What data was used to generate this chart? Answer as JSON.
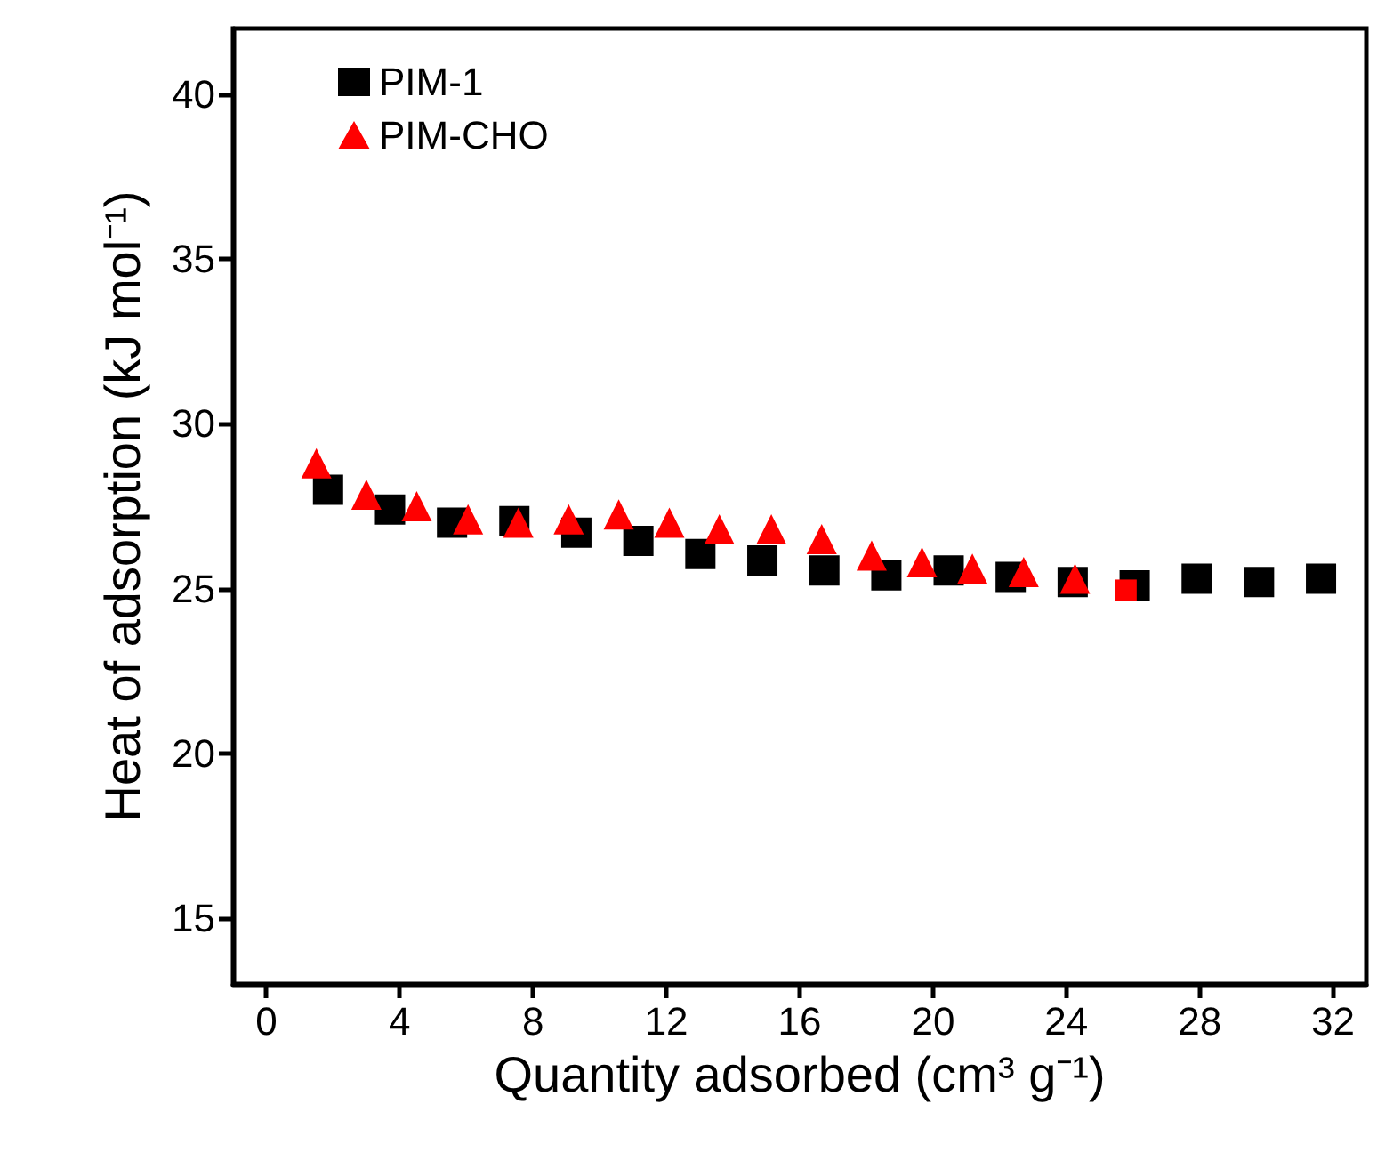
{
  "chart_data": {
    "type": "scatter",
    "xlabel": "Quantity adsorbed (cm³ g⁻¹)",
    "ylabel": "Heat of adsorption (kJ mol⁻¹)",
    "xlim": [
      -1,
      33
    ],
    "xticks": [
      0,
      4,
      8,
      12,
      16,
      20,
      24,
      28,
      32
    ],
    "ylim": [
      13,
      42
    ],
    "yticks": [
      15,
      20,
      25,
      30,
      35,
      40
    ],
    "grid": false,
    "legend": "top left",
    "series": [
      {
        "name": "PIM-1",
        "color": "#000000",
        "marker": "square",
        "x": [
          1.85,
          3.71,
          5.57,
          7.44,
          9.3,
          11.16,
          13.02,
          14.88,
          16.74,
          18.6,
          20.47,
          22.33,
          24.19,
          26.05,
          27.91,
          29.78,
          31.64
        ],
        "values": [
          28.0,
          27.4,
          27.0,
          27.05,
          26.7,
          26.45,
          26.05,
          25.85,
          25.55,
          25.4,
          25.55,
          25.35,
          25.2,
          25.1,
          25.3,
          25.2,
          25.3
        ]
      },
      {
        "name": "PIM-CHO",
        "color": "#ff0000",
        "marker": "triangle",
        "x": [
          1.5,
          3.0,
          4.51,
          6.05,
          7.56,
          9.07,
          10.57,
          12.09,
          13.59,
          15.15,
          16.66,
          18.16,
          19.67,
          21.18,
          22.72,
          24.26
        ],
        "values": [
          28.8,
          27.85,
          27.5,
          27.1,
          27.0,
          27.1,
          27.25,
          27.0,
          26.8,
          26.8,
          26.5,
          26.0,
          25.8,
          25.6,
          25.5,
          25.3
        ]
      },
      {
        "color": "#ff0000",
        "marker": "square",
        "x": [
          25.79
        ],
        "values": [
          24.95
        ]
      }
    ]
  }
}
